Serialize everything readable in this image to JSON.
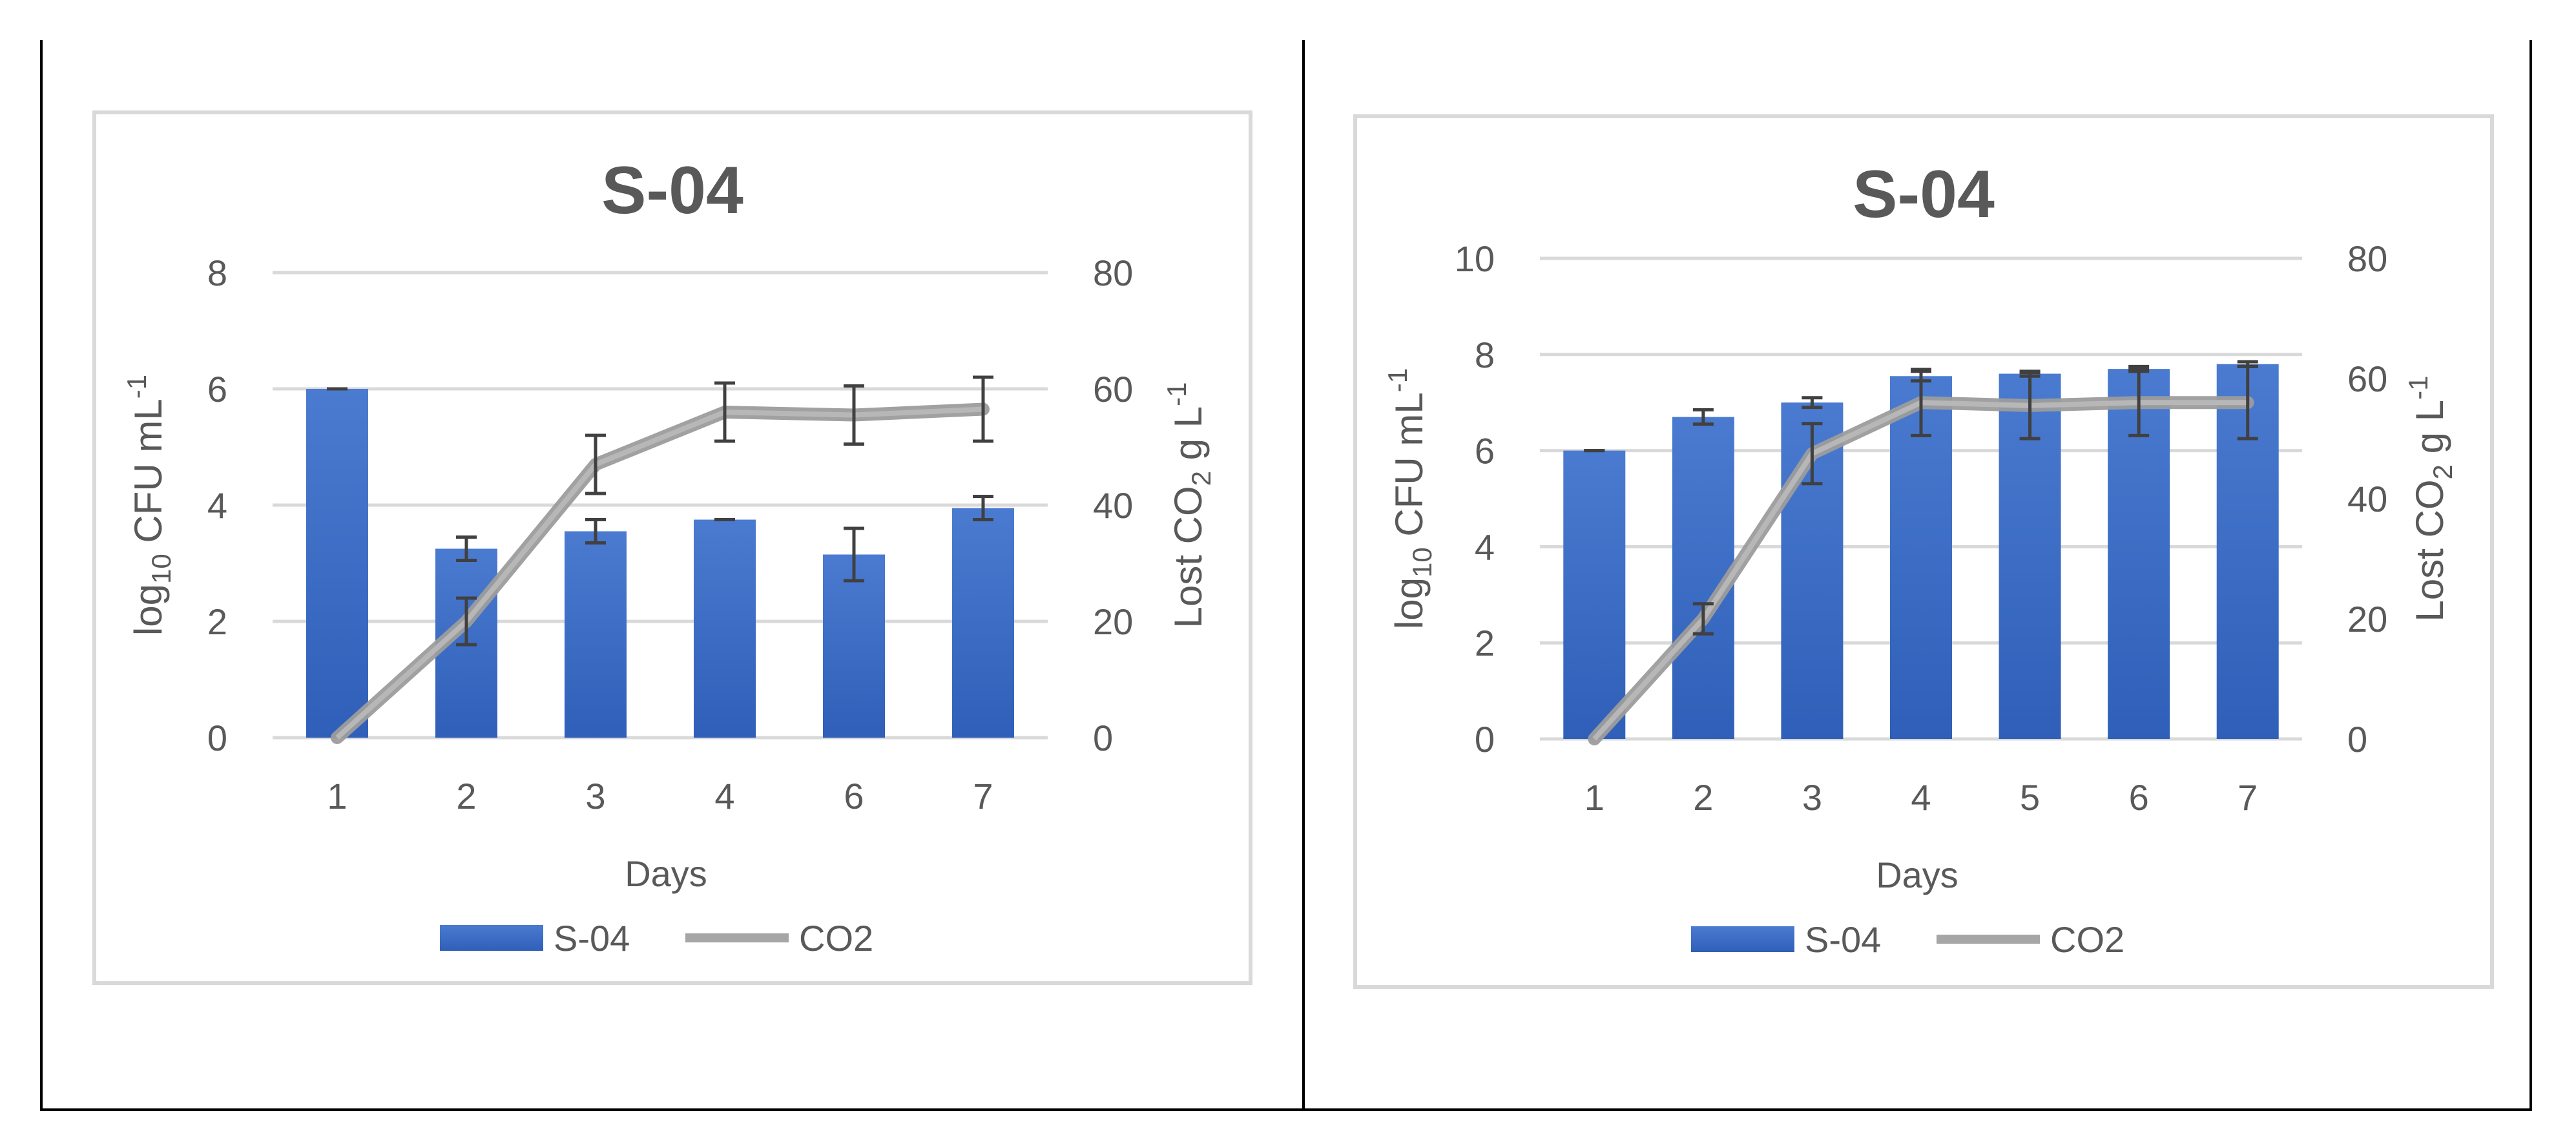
{
  "chart_data": [
    {
      "type": "bar+line",
      "title": "S-04",
      "categories": [
        "1",
        "2",
        "3",
        "4",
        "6",
        "7"
      ],
      "xlabel": "Days",
      "ylabel": {
        "base": "log",
        "sub": "10",
        "mid": " CFU mL",
        "sup": "-1"
      },
      "y2label": {
        "base": "Lost CO",
        "sub": "2",
        "mid": " g L",
        "sup": "-1"
      },
      "ylim": [
        0,
        8
      ],
      "yticks": [
        0,
        2,
        4,
        6,
        8
      ],
      "y2lim": [
        0,
        80
      ],
      "y2ticks": [
        0,
        20,
        40,
        60,
        80
      ],
      "grid": true,
      "legend_position": "bottom",
      "series": [
        {
          "name": "S-04",
          "kind": "bar",
          "axis": "left",
          "color": "#3e6fc6",
          "values": [
            6.0,
            3.25,
            3.55,
            3.75,
            3.15,
            3.95
          ],
          "errors": [
            0.0,
            0.2,
            0.2,
            0.0,
            0.45,
            0.2
          ]
        },
        {
          "name": "CO2",
          "kind": "line",
          "axis": "right",
          "color": "#a6a6a6",
          "values": [
            0,
            20,
            47,
            56,
            55.5,
            56.5
          ],
          "errors": [
            0,
            4,
            5,
            5,
            5,
            5.5
          ]
        }
      ]
    },
    {
      "type": "bar+line",
      "title": "S-04",
      "categories": [
        "1",
        "2",
        "3",
        "4",
        "5",
        "6",
        "7"
      ],
      "xlabel": "Days",
      "ylabel": {
        "base": "log",
        "sub": "10",
        "mid": " CFU mL",
        "sup": "-1"
      },
      "y2label": {
        "base": "Lost CO",
        "sub": "2",
        "mid": " g L",
        "sup": "-1"
      },
      "ylim": [
        0,
        10
      ],
      "yticks": [
        0,
        2,
        4,
        6,
        8,
        10
      ],
      "y2lim": [
        0,
        80
      ],
      "y2ticks": [
        0,
        20,
        40,
        60,
        80
      ],
      "grid": true,
      "legend_position": "bottom",
      "series": [
        {
          "name": "S-04",
          "kind": "bar",
          "axis": "left",
          "color": "#3e6fc6",
          "values": [
            6.0,
            6.7,
            7.0,
            7.55,
            7.6,
            7.7,
            7.8
          ],
          "errors": [
            0.0,
            0.15,
            0.1,
            0.1,
            0.05,
            0.05,
            0.05
          ]
        },
        {
          "name": "CO2",
          "kind": "line",
          "axis": "right",
          "color": "#a6a6a6",
          "values": [
            0,
            20,
            47.5,
            56,
            55.5,
            56,
            56
          ],
          "errors": [
            0,
            2.5,
            5,
            5.5,
            5.5,
            5.5,
            6
          ]
        }
      ]
    }
  ]
}
